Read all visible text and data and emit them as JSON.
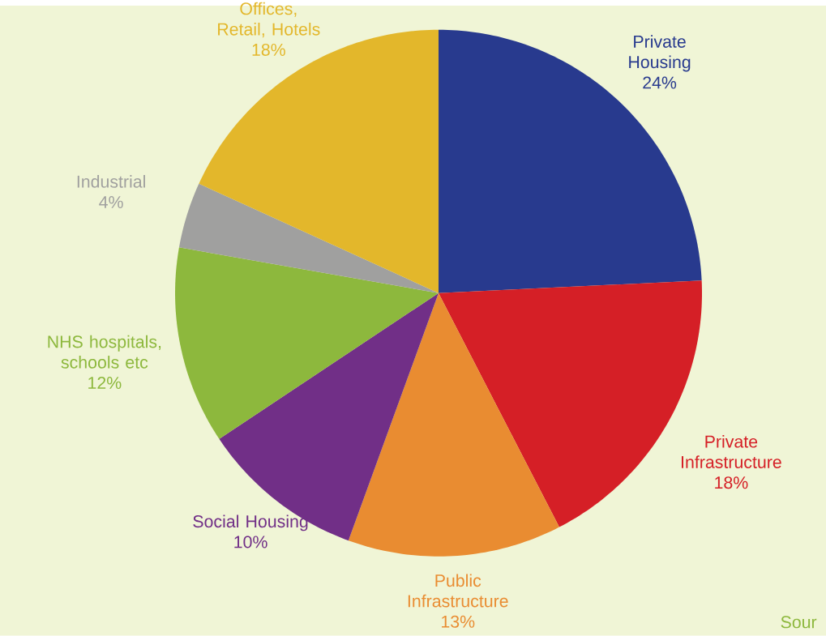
{
  "chart_data": {
    "type": "pie",
    "categories": [
      "Private Housing",
      "Private Infrastructure",
      "Public Infrastructure",
      "Social Housing",
      "NHS hospitals, schools etc",
      "Industrial",
      "Offices, Retail, Hotels"
    ],
    "values": [
      24,
      18,
      13,
      10,
      12,
      4,
      18
    ],
    "value_labels": [
      "24%",
      "18%",
      "13%",
      "10%",
      "12%",
      "4%",
      "18%"
    ],
    "colors": [
      "#283a8e",
      "#d51f26",
      "#e98c31",
      "#712f87",
      "#8db83d",
      "#a0a09f",
      "#e3b72b"
    ],
    "annotations": [
      "Sour"
    ]
  }
}
